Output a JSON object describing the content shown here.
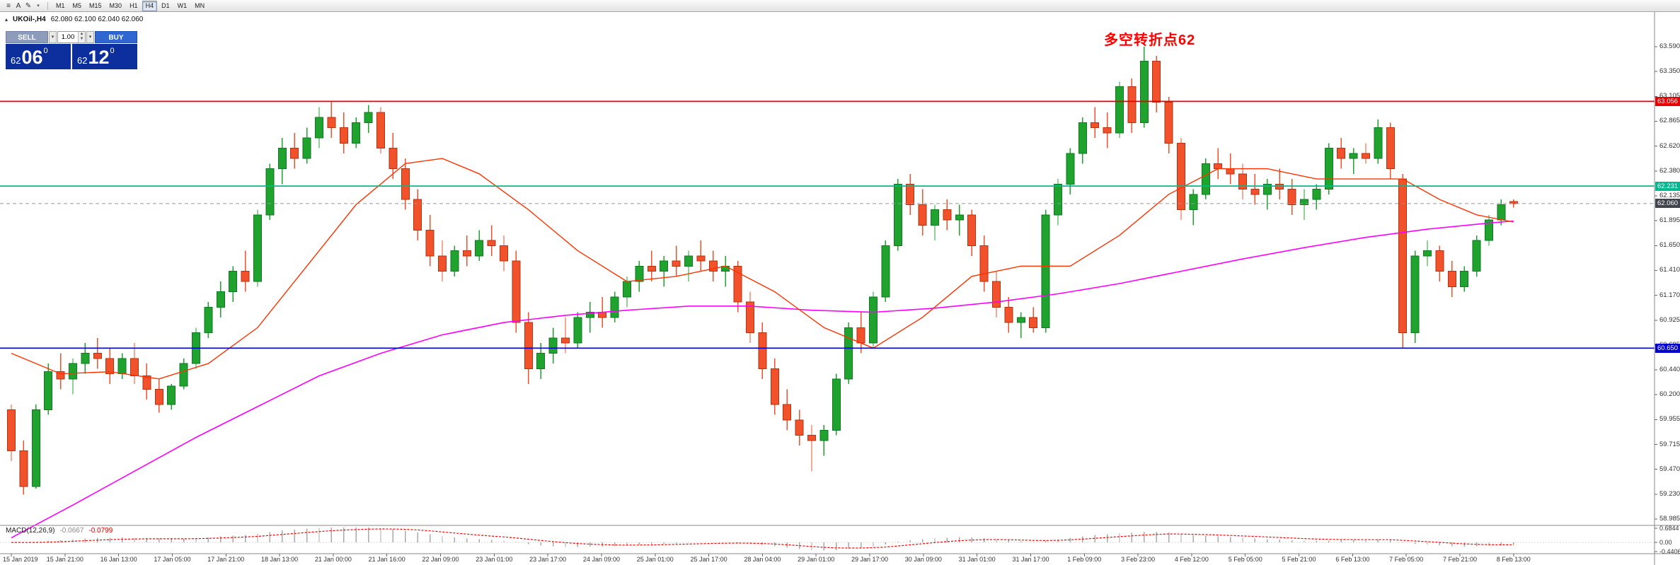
{
  "toolbar": {
    "icons": [
      {
        "name": "menu-icon",
        "glyph": "≡"
      },
      {
        "name": "letter-a-icon",
        "glyph": "A"
      },
      {
        "name": "draw-icon",
        "glyph": "✎"
      }
    ],
    "draw_caret_glyph": "▾",
    "timeframes": [
      "M1",
      "M5",
      "M15",
      "M30",
      "H1",
      "H4",
      "D1",
      "W1",
      "MN"
    ],
    "active_timeframe": "H4"
  },
  "chart": {
    "symbol_title": "UKOil-,H4",
    "quote": "62.080 62.100 62.040 62.060",
    "title_icon_glyph": "▴"
  },
  "trade_panel": {
    "sell_label": "SELL",
    "buy_label": "BUY",
    "volume": "1.00",
    "caret_glyph": "▾",
    "spin_up_glyph": "▲",
    "spin_down_glyph": "▼",
    "sell_price": {
      "head": "62",
      "big": "06",
      "sup": "0"
    },
    "buy_price": {
      "head": "62",
      "big": "12",
      "sup": "0"
    }
  },
  "annotation": {
    "text": "多空转折点62",
    "color": "#ff0000"
  },
  "chart_data": {
    "type": "candlestick",
    "symbol": "UKOil-",
    "timeframe": "H4",
    "ohlc_current": {
      "open": 62.08,
      "high": 62.1,
      "low": 62.04,
      "close": 62.06
    },
    "up_color": "#1fa32e",
    "up_border": "#0e7a22",
    "down_color": "#f1512b",
    "down_border": "#b5330f",
    "price_axis_labels": [
      "63.590",
      "63.350",
      "63.105",
      "62.865",
      "62.620",
      "62.380",
      "62.135",
      "61.895",
      "61.650",
      "61.410",
      "61.170",
      "60.925",
      "60.685",
      "60.440",
      "60.200",
      "59.955",
      "59.715",
      "59.470",
      "59.230",
      "58.985"
    ],
    "time_axis_labels": [
      "15 Jan 2019",
      "15 Jan 21:00",
      "16 Jan 13:00",
      "17 Jan 05:00",
      "17 Jan 21:00",
      "18 Jan 13:00",
      "21 Jan 00:00",
      "21 Jan 16:00",
      "22 Jan 09:00",
      "23 Jan 01:00",
      "23 Jan 17:00",
      "24 Jan 09:00",
      "25 Jan 01:00",
      "25 Jan 17:00",
      "28 Jan 04:00",
      "29 Jan 01:00",
      "29 Jan 17:00",
      "30 Jan 09:00",
      "31 Jan 01:00",
      "31 Jan 17:00",
      "1 Feb 09:00",
      "3 Feb 23:00",
      "4 Feb 12:00",
      "5 Feb 05:00",
      "5 Feb 21:00",
      "6 Feb 13:00",
      "7 Feb 05:00",
      "7 Feb 21:00",
      "8 Feb 13:00"
    ],
    "candles": [
      [
        60.05,
        60.1,
        59.55,
        59.65
      ],
      [
        59.65,
        59.75,
        59.22,
        59.3
      ],
      [
        59.3,
        60.1,
        59.28,
        60.05
      ],
      [
        60.05,
        60.5,
        60.0,
        60.42
      ],
      [
        60.42,
        60.6,
        60.25,
        60.35
      ],
      [
        60.35,
        60.55,
        60.2,
        60.5
      ],
      [
        60.5,
        60.7,
        60.4,
        60.6
      ],
      [
        60.6,
        60.75,
        60.45,
        60.55
      ],
      [
        60.55,
        60.65,
        60.3,
        60.4
      ],
      [
        60.4,
        60.6,
        60.35,
        60.55
      ],
      [
        60.55,
        60.7,
        60.3,
        60.38
      ],
      [
        60.38,
        60.5,
        60.15,
        60.25
      ],
      [
        60.25,
        60.35,
        60.02,
        60.1
      ],
      [
        60.1,
        60.3,
        60.05,
        60.28
      ],
      [
        60.28,
        60.55,
        60.25,
        60.5
      ],
      [
        60.5,
        60.85,
        60.45,
        60.8
      ],
      [
        60.8,
        61.1,
        60.75,
        61.05
      ],
      [
        61.05,
        61.3,
        60.95,
        61.2
      ],
      [
        61.2,
        61.45,
        61.1,
        61.4
      ],
      [
        61.4,
        61.6,
        61.2,
        61.3
      ],
      [
        61.3,
        62.0,
        61.25,
        61.95
      ],
      [
        61.95,
        62.45,
        61.9,
        62.4
      ],
      [
        62.4,
        62.7,
        62.25,
        62.6
      ],
      [
        62.6,
        62.75,
        62.4,
        62.5
      ],
      [
        62.5,
        62.8,
        62.45,
        62.7
      ],
      [
        62.7,
        63.0,
        62.6,
        62.9
      ],
      [
        62.9,
        63.05,
        62.7,
        62.8
      ],
      [
        62.8,
        62.95,
        62.55,
        62.65
      ],
      [
        62.65,
        62.9,
        62.6,
        62.85
      ],
      [
        62.85,
        63.02,
        62.75,
        62.95
      ],
      [
        62.95,
        63.0,
        62.55,
        62.6
      ],
      [
        62.6,
        62.75,
        62.3,
        62.4
      ],
      [
        62.4,
        62.5,
        62.0,
        62.1
      ],
      [
        62.1,
        62.2,
        61.7,
        61.8
      ],
      [
        61.8,
        61.95,
        61.45,
        61.55
      ],
      [
        61.55,
        61.7,
        61.3,
        61.4
      ],
      [
        61.4,
        61.65,
        61.35,
        61.6
      ],
      [
        61.6,
        61.75,
        61.45,
        61.55
      ],
      [
        61.55,
        61.8,
        61.5,
        61.7
      ],
      [
        61.7,
        61.85,
        61.55,
        61.65
      ],
      [
        61.65,
        61.75,
        61.4,
        61.5
      ],
      [
        61.5,
        61.6,
        60.8,
        60.9
      ],
      [
        60.9,
        61.0,
        60.3,
        60.45
      ],
      [
        60.45,
        60.7,
        60.35,
        60.6
      ],
      [
        60.6,
        60.85,
        60.5,
        60.75
      ],
      [
        60.75,
        60.95,
        60.6,
        60.7
      ],
      [
        60.7,
        61.0,
        60.65,
        60.95
      ],
      [
        60.95,
        61.1,
        60.8,
        61.0
      ],
      [
        61.0,
        61.15,
        60.85,
        60.95
      ],
      [
        60.95,
        61.2,
        60.9,
        61.15
      ],
      [
        61.15,
        61.35,
        61.05,
        61.3
      ],
      [
        61.3,
        61.5,
        61.2,
        61.45
      ],
      [
        61.45,
        61.6,
        61.3,
        61.4
      ],
      [
        61.4,
        61.55,
        61.25,
        61.5
      ],
      [
        61.5,
        61.65,
        61.35,
        61.45
      ],
      [
        61.45,
        61.6,
        61.3,
        61.55
      ],
      [
        61.55,
        61.7,
        61.4,
        61.5
      ],
      [
        61.5,
        61.6,
        61.3,
        61.4
      ],
      [
        61.4,
        61.55,
        61.25,
        61.45
      ],
      [
        61.45,
        61.5,
        61.0,
        61.1
      ],
      [
        61.1,
        61.2,
        60.7,
        60.8
      ],
      [
        60.8,
        60.9,
        60.35,
        60.45
      ],
      [
        60.45,
        60.55,
        60.0,
        60.1
      ],
      [
        60.1,
        60.25,
        59.85,
        59.95
      ],
      [
        59.95,
        60.05,
        59.7,
        59.8
      ],
      [
        59.8,
        59.9,
        59.45,
        59.75
      ],
      [
        59.75,
        59.9,
        59.6,
        59.85
      ],
      [
        59.85,
        60.4,
        59.8,
        60.35
      ],
      [
        60.35,
        60.9,
        60.3,
        60.85
      ],
      [
        60.85,
        61.0,
        60.6,
        60.7
      ],
      [
        60.7,
        61.2,
        60.65,
        61.15
      ],
      [
        61.15,
        61.7,
        61.1,
        61.65
      ],
      [
        61.65,
        62.3,
        61.6,
        62.25
      ],
      [
        62.25,
        62.35,
        61.95,
        62.05
      ],
      [
        62.05,
        62.2,
        61.75,
        61.85
      ],
      [
        61.85,
        62.05,
        61.7,
        62.0
      ],
      [
        62.0,
        62.1,
        61.8,
        61.9
      ],
      [
        61.9,
        62.05,
        61.75,
        61.95
      ],
      [
        61.95,
        62.0,
        61.55,
        61.65
      ],
      [
        61.65,
        61.75,
        61.2,
        61.3
      ],
      [
        61.3,
        61.4,
        60.95,
        61.05
      ],
      [
        61.05,
        61.15,
        60.8,
        60.9
      ],
      [
        60.9,
        61.0,
        60.75,
        60.95
      ],
      [
        60.95,
        61.05,
        60.8,
        60.85
      ],
      [
        60.85,
        62.0,
        60.8,
        61.95
      ],
      [
        61.95,
        62.3,
        61.85,
        62.25
      ],
      [
        62.25,
        62.6,
        62.15,
        62.55
      ],
      [
        62.55,
        62.9,
        62.45,
        62.85
      ],
      [
        62.85,
        63.0,
        62.7,
        62.8
      ],
      [
        62.8,
        62.95,
        62.6,
        62.75
      ],
      [
        62.75,
        63.25,
        62.7,
        63.2
      ],
      [
        63.2,
        63.28,
        62.75,
        62.85
      ],
      [
        62.85,
        63.59,
        62.8,
        63.45
      ],
      [
        63.45,
        63.5,
        62.95,
        63.05
      ],
      [
        63.05,
        63.1,
        62.55,
        62.65
      ],
      [
        62.65,
        62.7,
        61.9,
        62.0
      ],
      [
        62.0,
        62.2,
        61.85,
        62.15
      ],
      [
        62.15,
        62.5,
        62.1,
        62.45
      ],
      [
        62.45,
        62.6,
        62.3,
        62.4
      ],
      [
        62.4,
        62.55,
        62.25,
        62.35
      ],
      [
        62.35,
        62.45,
        62.1,
        62.2
      ],
      [
        62.2,
        62.35,
        62.05,
        62.15
      ],
      [
        62.15,
        62.3,
        62.0,
        62.25
      ],
      [
        62.25,
        62.4,
        62.1,
        62.2
      ],
      [
        62.2,
        62.3,
        61.95,
        62.05
      ],
      [
        62.05,
        62.2,
        61.9,
        62.1
      ],
      [
        62.1,
        62.25,
        62.0,
        62.2
      ],
      [
        62.2,
        62.65,
        62.15,
        62.6
      ],
      [
        62.6,
        62.7,
        62.4,
        62.5
      ],
      [
        62.5,
        62.6,
        62.35,
        62.55
      ],
      [
        62.55,
        62.65,
        62.45,
        62.5
      ],
      [
        62.5,
        62.88,
        62.45,
        62.8
      ],
      [
        62.8,
        62.85,
        62.3,
        62.4
      ],
      [
        62.3,
        62.35,
        60.65,
        60.8
      ],
      [
        60.8,
        61.6,
        60.7,
        61.55
      ],
      [
        61.55,
        61.7,
        61.45,
        61.6
      ],
      [
        61.6,
        61.65,
        61.3,
        61.4
      ],
      [
        61.4,
        61.5,
        61.15,
        61.25
      ],
      [
        61.25,
        61.45,
        61.2,
        61.4
      ],
      [
        61.4,
        61.75,
        61.35,
        61.7
      ],
      [
        61.7,
        61.95,
        61.65,
        61.9
      ],
      [
        61.9,
        62.1,
        61.85,
        62.05
      ],
      [
        62.08,
        62.1,
        62.02,
        62.06
      ]
    ],
    "ma_fast": {
      "name": "MA fast",
      "color": "#ff3300",
      "points": [
        [
          0,
          60.6
        ],
        [
          4,
          60.4
        ],
        [
          8,
          60.42
        ],
        [
          12,
          60.35
        ],
        [
          16,
          60.5
        ],
        [
          20,
          60.85
        ],
        [
          24,
          61.45
        ],
        [
          28,
          62.05
        ],
        [
          32,
          62.45
        ],
        [
          35,
          62.5
        ],
        [
          38,
          62.35
        ],
        [
          42,
          62.0
        ],
        [
          46,
          61.6
        ],
        [
          50,
          61.3
        ],
        [
          54,
          61.35
        ],
        [
          58,
          61.45
        ],
        [
          62,
          61.2
        ],
        [
          66,
          60.85
        ],
        [
          70,
          60.65
        ],
        [
          74,
          60.95
        ],
        [
          78,
          61.35
        ],
        [
          82,
          61.45
        ],
        [
          86,
          61.45
        ],
        [
          90,
          61.75
        ],
        [
          94,
          62.15
        ],
        [
          98,
          62.4
        ],
        [
          102,
          62.4
        ],
        [
          106,
          62.3
        ],
        [
          110,
          62.3
        ],
        [
          113,
          62.3
        ],
        [
          116,
          62.1
        ],
        [
          119,
          61.95
        ],
        [
          122,
          61.88
        ]
      ]
    },
    "ma_slow": {
      "name": "MA slow",
      "color": "#ff00ff",
      "points": [
        [
          0,
          58.8
        ],
        [
          5,
          59.12
        ],
        [
          10,
          59.45
        ],
        [
          15,
          59.78
        ],
        [
          20,
          60.08
        ],
        [
          25,
          60.38
        ],
        [
          30,
          60.6
        ],
        [
          35,
          60.78
        ],
        [
          40,
          60.9
        ],
        [
          45,
          60.97
        ],
        [
          50,
          61.02
        ],
        [
          55,
          61.06
        ],
        [
          60,
          61.06
        ],
        [
          65,
          61.02
        ],
        [
          70,
          61.0
        ],
        [
          75,
          61.04
        ],
        [
          80,
          61.1
        ],
        [
          85,
          61.18
        ],
        [
          90,
          61.28
        ],
        [
          95,
          61.4
        ],
        [
          100,
          61.52
        ],
        [
          105,
          61.63
        ],
        [
          110,
          61.73
        ],
        [
          115,
          61.81
        ],
        [
          120,
          61.87
        ],
        [
          122,
          61.89
        ]
      ]
    },
    "hlines": [
      {
        "price": 63.056,
        "label": "63.056",
        "color": "#e60000"
      },
      {
        "price": 62.231,
        "label": "62.231",
        "color": "#00b98e"
      },
      {
        "price": 60.65,
        "label": "60.650",
        "color": "#0000cc"
      }
    ],
    "current_price": {
      "price": 62.06,
      "label": "62.060",
      "color": "#40454d",
      "line_color": "#999999"
    },
    "macd": {
      "title": "MACD(12,26,9)",
      "value_main": "-0.0667",
      "value_signal": "-0.0799",
      "axis_labels": [
        "0.6844",
        "0.00",
        "-0.4406"
      ],
      "axis_values": [
        0.6844,
        0.0,
        -0.4406
      ],
      "signal_color": "#ff0000",
      "hist_color": "#a9a9a9"
    }
  }
}
